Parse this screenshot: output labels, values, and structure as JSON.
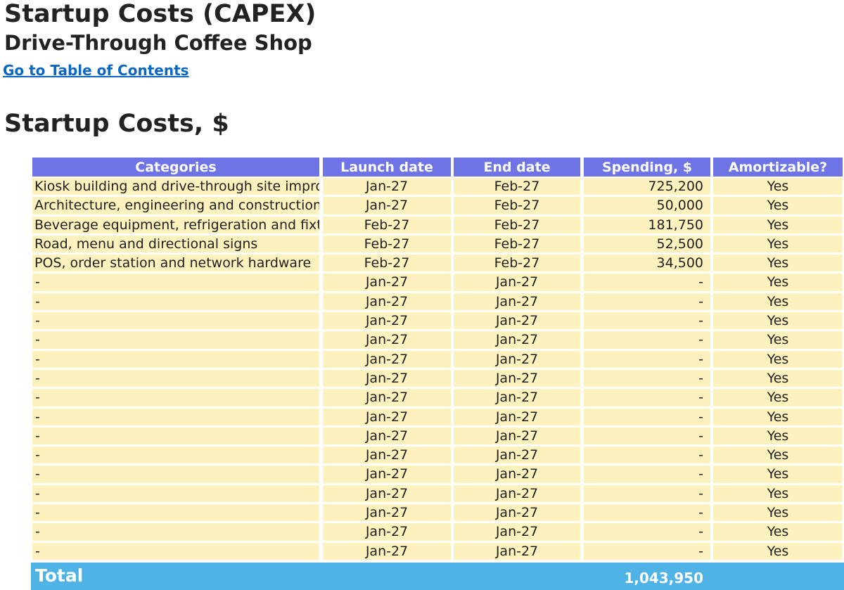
{
  "page": {
    "title": "Startup Costs (CAPEX)",
    "subtitle": "Drive-Through Coffee Shop",
    "toc_link": "Go to Table of Contents",
    "section_title": "Startup Costs, $"
  },
  "table": {
    "headers": [
      "Categories",
      "Launch date",
      "End date",
      "Spending, $",
      "Amortizable?"
    ],
    "rows": [
      {
        "category": "Kiosk building and drive-through site improve",
        "launch": "Jan-27",
        "end": "Feb-27",
        "spending": "725,200",
        "amortizable": "Yes"
      },
      {
        "category": "Architecture, engineering and construction pe",
        "launch": "Jan-27",
        "end": "Feb-27",
        "spending": "50,000",
        "amortizable": "Yes"
      },
      {
        "category": "Beverage equipment, refrigeration and fixture",
        "launch": "Feb-27",
        "end": "Feb-27",
        "spending": "181,750",
        "amortizable": "Yes"
      },
      {
        "category": "Road, menu and directional signs",
        "launch": "Feb-27",
        "end": "Feb-27",
        "spending": "52,500",
        "amortizable": "Yes"
      },
      {
        "category": "POS, order station and network hardware",
        "launch": "Feb-27",
        "end": "Feb-27",
        "spending": "34,500",
        "amortizable": "Yes"
      },
      {
        "category": "-",
        "launch": "Jan-27",
        "end": "Jan-27",
        "spending": "-",
        "amortizable": "Yes"
      },
      {
        "category": "-",
        "launch": "Jan-27",
        "end": "Jan-27",
        "spending": "-",
        "amortizable": "Yes"
      },
      {
        "category": "-",
        "launch": "Jan-27",
        "end": "Jan-27",
        "spending": "-",
        "amortizable": "Yes"
      },
      {
        "category": "-",
        "launch": "Jan-27",
        "end": "Jan-27",
        "spending": "-",
        "amortizable": "Yes"
      },
      {
        "category": "-",
        "launch": "Jan-27",
        "end": "Jan-27",
        "spending": "-",
        "amortizable": "Yes"
      },
      {
        "category": "-",
        "launch": "Jan-27",
        "end": "Jan-27",
        "spending": "-",
        "amortizable": "Yes"
      },
      {
        "category": "-",
        "launch": "Jan-27",
        "end": "Jan-27",
        "spending": "-",
        "amortizable": "Yes"
      },
      {
        "category": "-",
        "launch": "Jan-27",
        "end": "Jan-27",
        "spending": "-",
        "amortizable": "Yes"
      },
      {
        "category": "-",
        "launch": "Jan-27",
        "end": "Jan-27",
        "spending": "-",
        "amortizable": "Yes"
      },
      {
        "category": "-",
        "launch": "Jan-27",
        "end": "Jan-27",
        "spending": "-",
        "amortizable": "Yes"
      },
      {
        "category": "-",
        "launch": "Jan-27",
        "end": "Jan-27",
        "spending": "-",
        "amortizable": "Yes"
      },
      {
        "category": "-",
        "launch": "Jan-27",
        "end": "Jan-27",
        "spending": "-",
        "amortizable": "Yes"
      },
      {
        "category": "-",
        "launch": "Jan-27",
        "end": "Jan-27",
        "spending": "-",
        "amortizable": "Yes"
      },
      {
        "category": "-",
        "launch": "Jan-27",
        "end": "Jan-27",
        "spending": "-",
        "amortizable": "Yes"
      },
      {
        "category": "-",
        "launch": "Jan-27",
        "end": "Jan-27",
        "spending": "-",
        "amortizable": "Yes"
      }
    ],
    "total_label": "Total",
    "total_value": "1,043,950"
  },
  "colors": {
    "header_bg": "#6e74e6",
    "cell_bg": "#fdf2bd",
    "total_bg": "#4fb3e6",
    "link": "#0b67c2"
  }
}
